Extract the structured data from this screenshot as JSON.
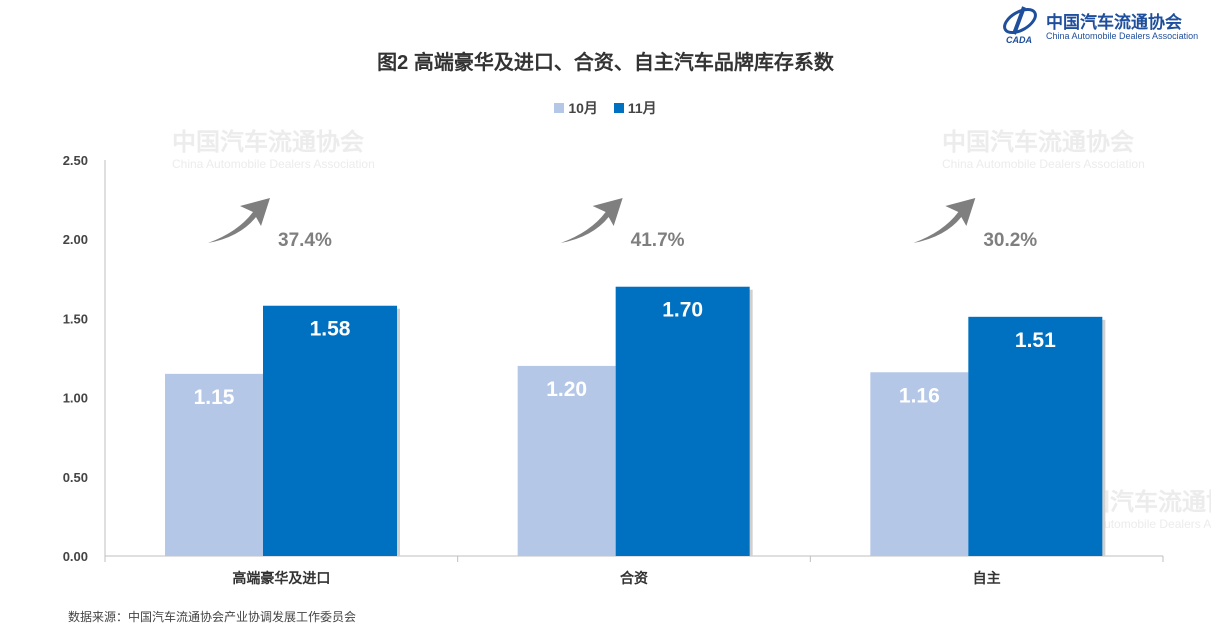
{
  "logo": {
    "cn": "中国汽车流通协会",
    "en": "China Automobile Dealers Association",
    "mark_text": "CADA"
  },
  "watermark": {
    "cn": "中国汽车流通协会",
    "en": "China Automobile Dealers Association"
  },
  "chart_data": {
    "type": "bar",
    "title": "图2  高端豪华及进口、合资、自主汽车品牌库存系数",
    "categories": [
      "高端豪华及进口",
      "合资",
      "自主"
    ],
    "series": [
      {
        "name": "10月",
        "values": [
          1.15,
          1.2,
          1.16
        ],
        "color": "#b4c7e7",
        "labels": [
          "1.15",
          "1.20",
          "1.16"
        ]
      },
      {
        "name": "11月",
        "values": [
          1.58,
          1.7,
          1.51
        ],
        "color": "#0070c0",
        "labels": [
          "1.58",
          "1.70",
          "1.51"
        ]
      }
    ],
    "ylim": [
      0,
      2.5
    ],
    "yticks": [
      "0.00",
      "0.50",
      "1.00",
      "1.50",
      "2.00",
      "2.50"
    ],
    "annotations": [
      "37.4%",
      "41.7%",
      "30.2%"
    ],
    "annotation_icon": "arrow-up-right-icon",
    "legend": "top",
    "grid": false
  },
  "source": "数据来源：中国汽车流通协会产业协调发展工作委员会"
}
